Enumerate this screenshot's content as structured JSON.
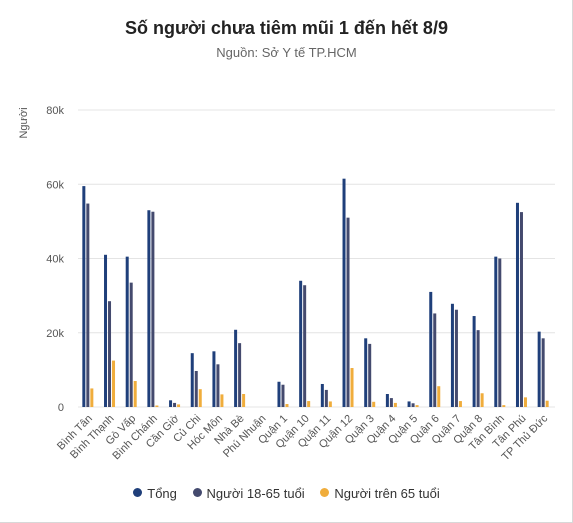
{
  "chart_data": {
    "type": "bar",
    "title": "Số người chưa tiêm mũi 1 đến hết 8/9",
    "subtitle": "Nguồn: Sở Y tế TP.HCM",
    "ylabel": "Người",
    "xlabel": "",
    "ylim": [
      0,
      80000
    ],
    "yticks": [
      0,
      20000,
      40000,
      60000,
      80000
    ],
    "ytick_labels": [
      "0",
      "20k",
      "40k",
      "60k",
      "80k"
    ],
    "grid": true,
    "legend_position": "bottom",
    "categories": [
      "Bình Tân",
      "Bình Thạnh",
      "Gò Vấp",
      "Bình Chánh",
      "Cần Giờ",
      "Củ Chi",
      "Hóc Môn",
      "Nhà Bè",
      "Phú Nhuận",
      "Quận 1",
      "Quận 10",
      "Quận 11",
      "Quận 12",
      "Quận 3",
      "Quận 4",
      "Quận 5",
      "Quận 6",
      "Quận 7",
      "Quận 8",
      "Tân Bình",
      "Tân Phú",
      "TP Thủ Đức"
    ],
    "series": [
      {
        "name": "Tổng",
        "color": "#1f3f7a",
        "values": [
          59500,
          41000,
          40500,
          53000,
          1800,
          14500,
          15000,
          20800,
          0,
          6800,
          34000,
          6200,
          61500,
          18500,
          3500,
          1500,
          31000,
          27800,
          24500,
          40500,
          55000,
          20300
        ]
      },
      {
        "name": "Người 18-65 tuổi",
        "color": "#444a6e",
        "values": [
          54800,
          28500,
          33500,
          52600,
          1100,
          9700,
          11500,
          17200,
          0,
          6000,
          32800,
          4600,
          51000,
          17000,
          2400,
          1000,
          25200,
          26200,
          20700,
          40000,
          52500,
          18500
        ]
      },
      {
        "name": "Người trên 65 tuổi",
        "color": "#f0ad3c",
        "values": [
          5000,
          12500,
          7000,
          400,
          700,
          4800,
          3400,
          3500,
          0,
          800,
          1600,
          1500,
          10500,
          1400,
          1100,
          500,
          5600,
          1600,
          3700,
          500,
          2600,
          1700
        ]
      }
    ]
  }
}
